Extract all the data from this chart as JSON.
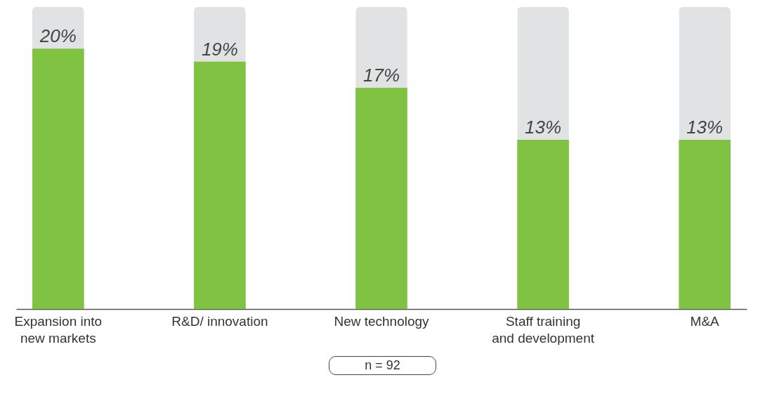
{
  "chart_data": {
    "type": "bar",
    "categories": [
      "Expansion into new markets",
      "R&D/ innovation",
      "New technology",
      "Staff training and development",
      "M&A"
    ],
    "values": [
      20,
      19,
      17,
      13,
      13
    ],
    "color": "#80c342",
    "value_labels": [
      "20%",
      "19%",
      "17%",
      "13%",
      "13%"
    ],
    "annotations": [
      "n = 92"
    ]
  }
}
